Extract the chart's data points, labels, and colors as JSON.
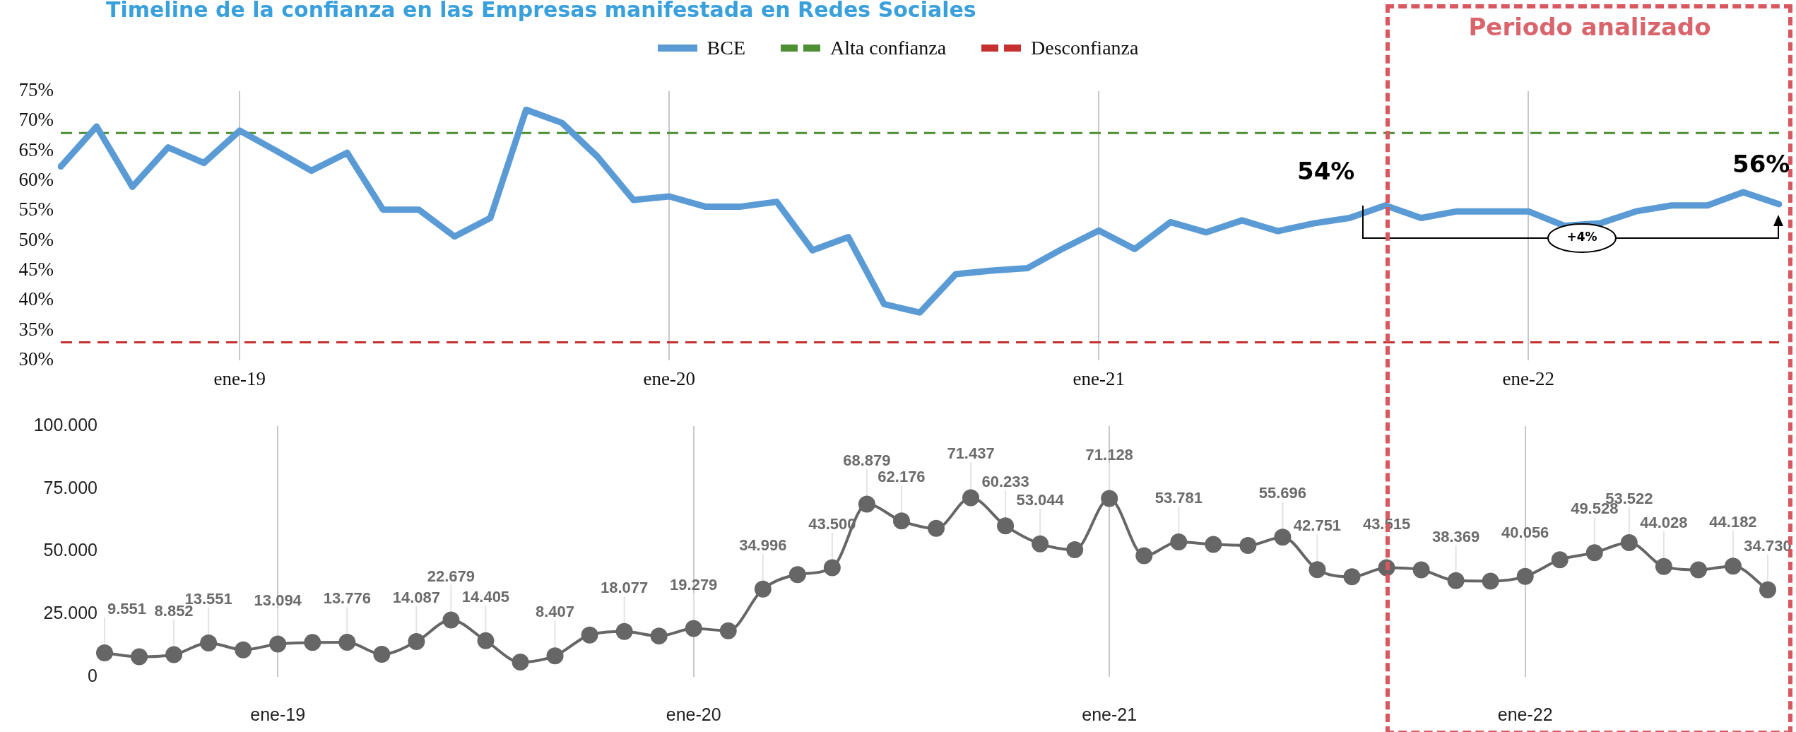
{
  "chart_data": [
    {
      "type": "line",
      "title": "Timeline de la confianza en las Empresas manifestada en Redes Sociales",
      "categories": [
        null,
        null,
        null,
        null,
        null,
        "ene-19",
        null,
        null,
        null,
        null,
        null,
        null,
        null,
        null,
        null,
        null,
        null,
        "ene-20",
        null,
        null,
        null,
        null,
        null,
        null,
        null,
        null,
        null,
        null,
        null,
        "ene-21",
        null,
        null,
        null,
        null,
        null,
        null,
        null,
        null,
        null,
        null,
        null,
        "ene-22",
        null,
        null,
        null,
        null,
        null,
        null,
        null
      ],
      "series": [
        {
          "name": "BCE",
          "color": "#5b9bd5",
          "values": [
            62.4,
            69.1,
            59.0,
            65.6,
            63.0,
            68.4,
            65.1,
            61.7,
            64.7,
            55.2,
            55.2,
            50.7,
            53.8,
            71.9,
            69.7,
            64.0,
            56.8,
            57.4,
            55.7,
            55.7,
            56.5,
            48.4,
            50.6,
            39.4,
            38.0,
            44.4,
            45.0,
            45.4,
            48.7,
            51.7,
            48.6,
            53.1,
            51.4,
            53.4,
            51.6,
            52.9,
            53.8,
            55.9,
            53.8,
            54.9,
            54.9,
            54.9,
            52.5,
            52.9,
            54.9,
            55.9,
            55.9,
            58.1,
            56.1
          ]
        }
      ],
      "ylim": [
        30,
        75
      ],
      "yticks": [
        {
          "value": 30,
          "label": "30%"
        },
        {
          "value": 35,
          "label": "35%"
        },
        {
          "value": 40,
          "label": "40%"
        },
        {
          "value": 45,
          "label": "45%"
        },
        {
          "value": 50,
          "label": "50%"
        },
        {
          "value": 55,
          "label": "55%"
        },
        {
          "value": 60,
          "label": "60%"
        },
        {
          "value": 65,
          "label": "65%"
        },
        {
          "value": 70,
          "label": "70%"
        },
        {
          "value": 75,
          "label": "75%"
        }
      ],
      "grid": "x",
      "legend": "top",
      "marker": "none",
      "ref_lines": [
        {
          "axis": "y",
          "value": 68,
          "label": "Alta confianza",
          "color": "#4e8f34",
          "line_style": "dashed"
        },
        {
          "axis": "y",
          "value": 33,
          "label": "Desconfianza",
          "color": "#c62f2f",
          "line_style": "dashed"
        }
      ],
      "annotations": [
        "Periodo analizado",
        "54%",
        "56%",
        "+4%"
      ]
    },
    {
      "type": "line",
      "categories": [
        null,
        null,
        null,
        null,
        null,
        "ene-19",
        null,
        null,
        null,
        null,
        null,
        null,
        null,
        null,
        null,
        null,
        null,
        "ene-20",
        null,
        null,
        null,
        null,
        null,
        null,
        null,
        null,
        null,
        null,
        null,
        "ene-21",
        null,
        null,
        null,
        null,
        null,
        null,
        null,
        null,
        null,
        null,
        null,
        "ene-22",
        null,
        null,
        null,
        null,
        null,
        null,
        null
      ],
      "values": [
        9551,
        8000,
        8852,
        13551,
        10800,
        13094,
        13700,
        13776,
        9000,
        14087,
        22679,
        14405,
        5900,
        8407,
        16700,
        18077,
        16300,
        19279,
        18400,
        34996,
        40800,
        43500,
        68879,
        62176,
        59200,
        71437,
        60233,
        53044,
        50700,
        71128,
        48300,
        53781,
        52800,
        52400,
        55696,
        42751,
        39900,
        43515,
        42700,
        38369,
        38200,
        40056,
        46700,
        49528,
        53522,
        44028,
        42700,
        44182,
        34730
      ],
      "value_labels": [
        "9.551",
        null,
        "8.852",
        "13.551",
        null,
        "13.094",
        null,
        "13.776",
        null,
        "14.087",
        "22.679",
        "14.405",
        null,
        "8.407",
        null,
        "18.077",
        null,
        "19.279",
        null,
        "34.996",
        null,
        "43.500",
        "68.879",
        "62.176",
        null,
        "71.437",
        "60.233",
        "53.044",
        null,
        "71.128",
        null,
        "53.781",
        null,
        null,
        "55.696",
        "42.751",
        null,
        "43.515",
        null,
        "38.369",
        null,
        "40.056",
        null,
        "49.528",
        "53.522",
        "44.028",
        null,
        "44.182",
        "34.730"
      ],
      "color": "#666666",
      "ylim": [
        0,
        100000
      ],
      "yticks": [
        0,
        {
          "value": 25000,
          "label": "25.000"
        },
        {
          "value": 50000,
          "label": "50.000"
        },
        {
          "value": 75000,
          "label": "75.000"
        },
        {
          "value": 100000,
          "label": "100.000"
        }
      ],
      "grid": "x",
      "marker": "circle"
    }
  ]
}
